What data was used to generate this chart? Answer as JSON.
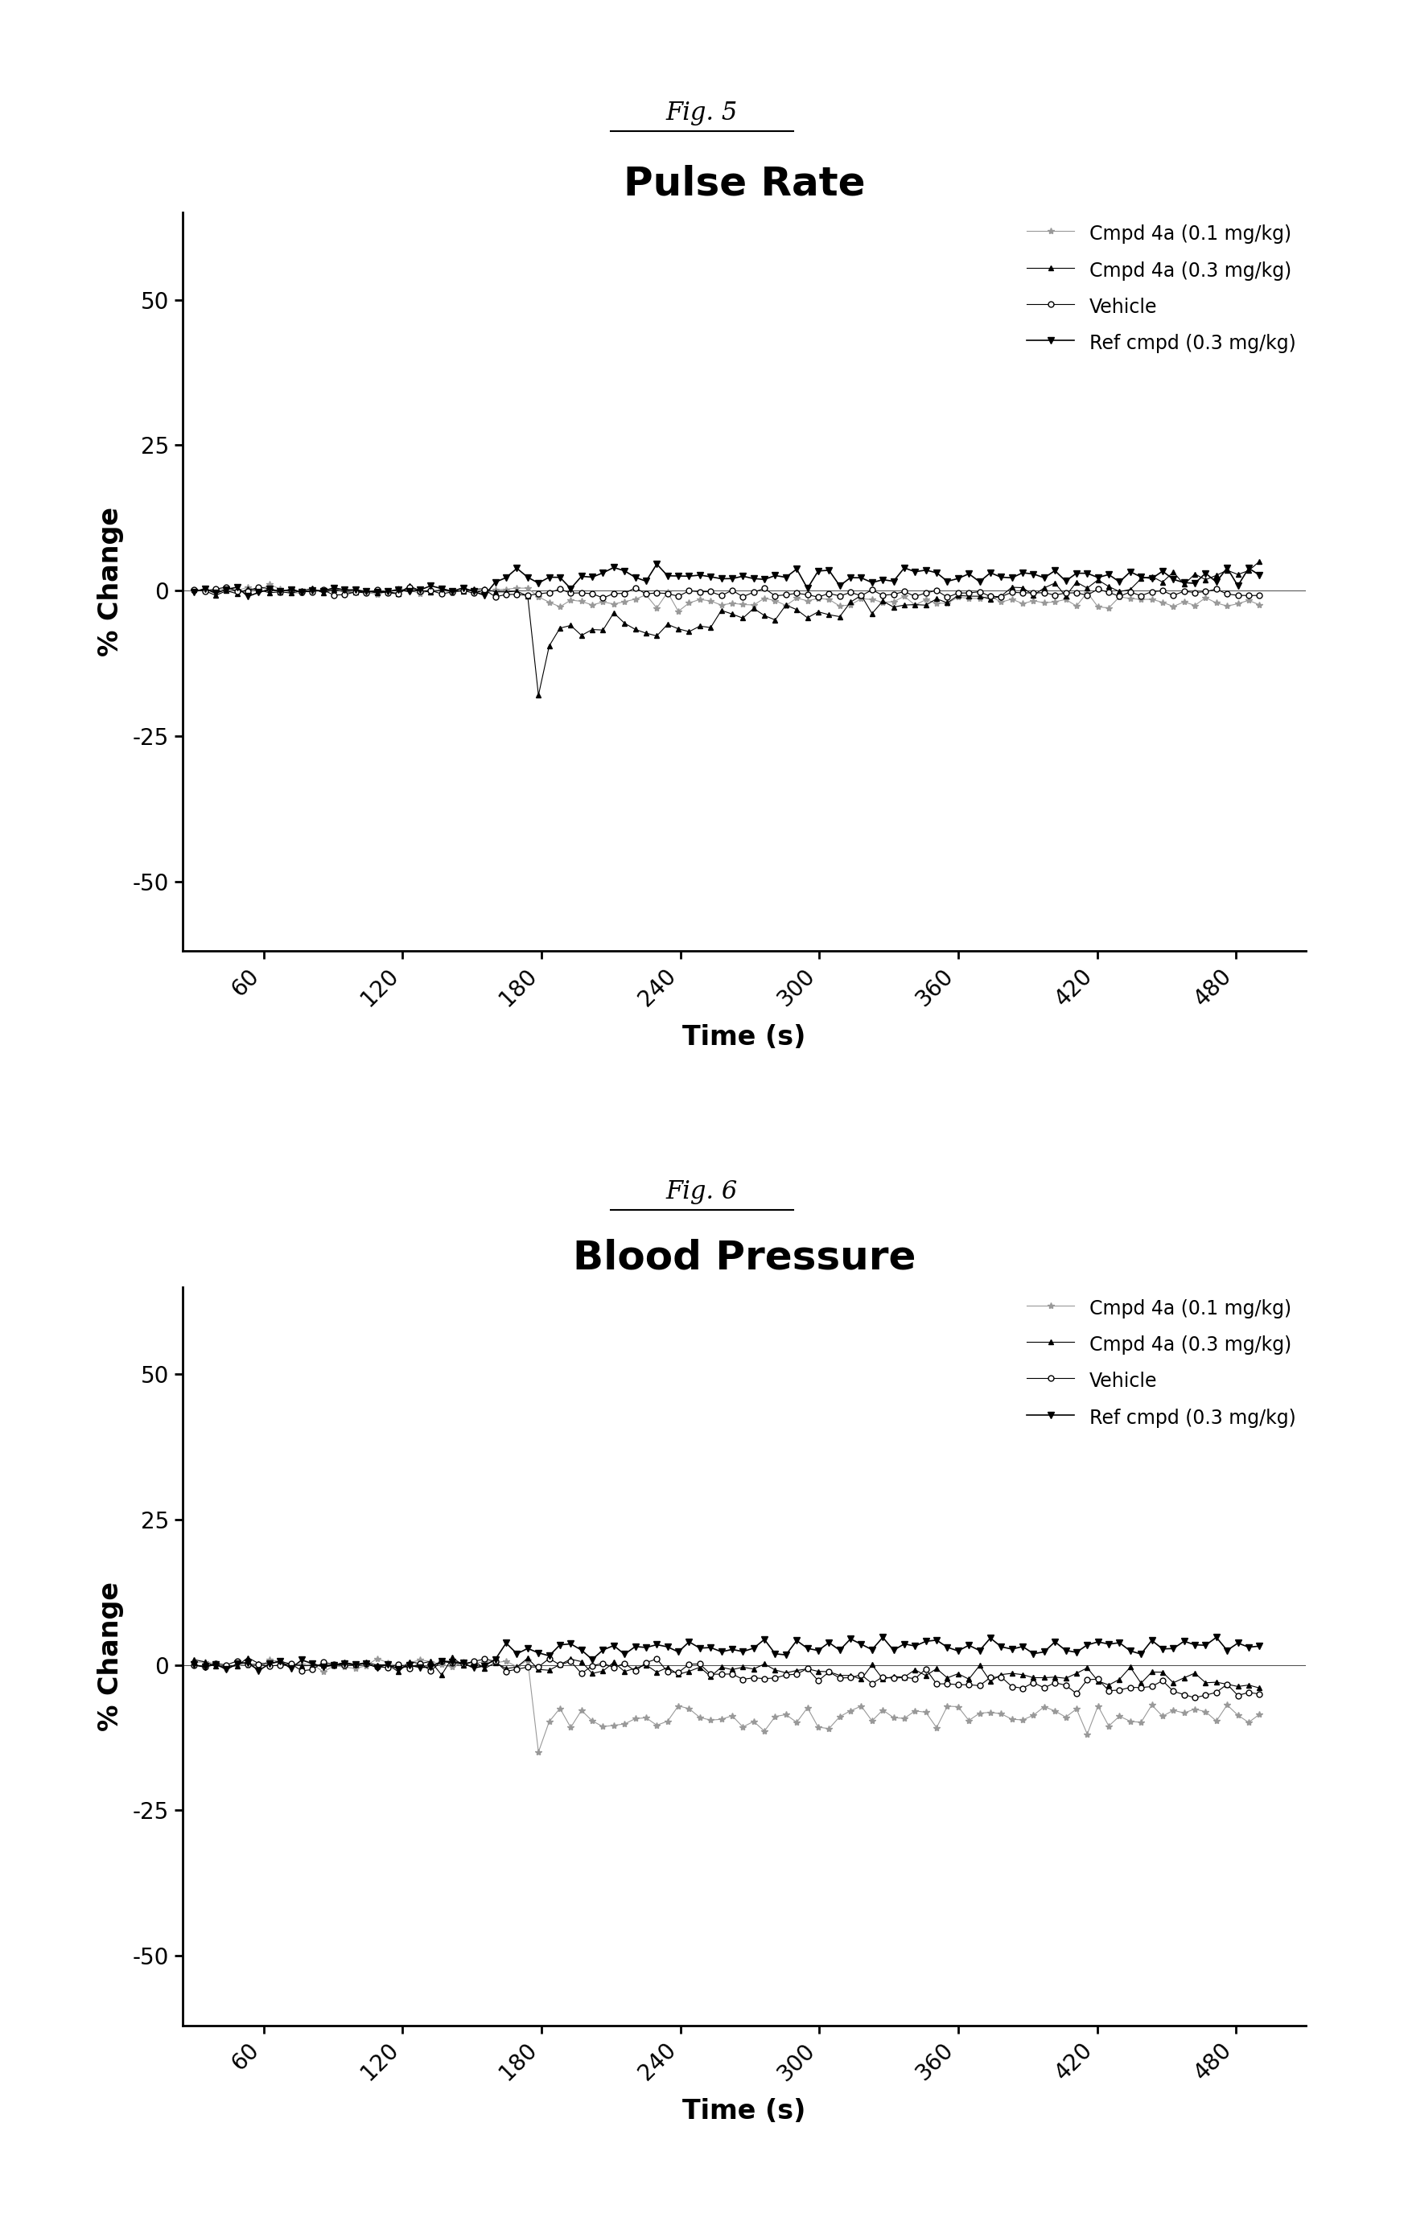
{
  "fig5_title": "Pulse Rate",
  "fig5_label": "Fig. 5",
  "fig6_title": "Blood Pressure",
  "fig6_label": "Fig. 6",
  "xlabel": "Time (s)",
  "ylabel": "% Change",
  "xticks": [
    60,
    120,
    180,
    240,
    300,
    360,
    420,
    480
  ],
  "yticks": [
    -50,
    -25,
    0,
    25,
    50
  ],
  "ylim": [
    -62,
    65
  ],
  "xlim": [
    25,
    510
  ],
  "legend_labels": [
    "Vehicle",
    "Cmpd 4a (0.1 mg/kg)",
    "Cmpd 4a (0.3 mg/kg)",
    "Ref cmpd (0.3 mg/kg)"
  ],
  "background_color": "#ffffff",
  "n_points": 100
}
